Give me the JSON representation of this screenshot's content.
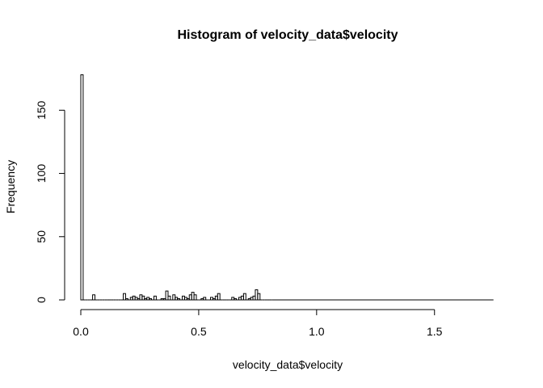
{
  "chart_data": {
    "type": "bar",
    "title": "Histogram of velocity_data$velocity",
    "xlabel": "velocity_data$velocity",
    "ylabel": "Frequency",
    "xlim": [
      0,
      1.75
    ],
    "ylim": [
      0,
      180
    ],
    "bin_width": 0.01,
    "x_ticks": [
      0,
      0.5,
      1.0,
      1.5
    ],
    "x_tick_labels": [
      "0.0",
      "0.5",
      "1.0",
      "1.5"
    ],
    "y_ticks": [
      0,
      50,
      100,
      150
    ],
    "y_tick_labels": [
      "0",
      "50",
      "100",
      "150"
    ],
    "bins_start": [
      0.0,
      0.01,
      0.02,
      0.03,
      0.04,
      0.05,
      0.06,
      0.07,
      0.08,
      0.09,
      0.1,
      0.11,
      0.12,
      0.13,
      0.14,
      0.15,
      0.16,
      0.17,
      0.18,
      0.19,
      0.2,
      0.21,
      0.22,
      0.23,
      0.24,
      0.25,
      0.26,
      0.27,
      0.28,
      0.29,
      0.3,
      0.31,
      0.32,
      0.33,
      0.34,
      0.35,
      0.36,
      0.37,
      0.38,
      0.39,
      0.4,
      0.41,
      0.42,
      0.43,
      0.44,
      0.45,
      0.46,
      0.47,
      0.48,
      0.49,
      0.5,
      0.51,
      0.52,
      0.53,
      0.54,
      0.55,
      0.56,
      0.57,
      0.58,
      0.59,
      0.6,
      0.61,
      0.62,
      0.63,
      0.64,
      0.65,
      0.66,
      0.67,
      0.68,
      0.69,
      0.7,
      0.71,
      0.72,
      0.73,
      0.74,
      0.75,
      0.76,
      0.77,
      0.78,
      0.79,
      0.8
    ],
    "values": [
      178,
      0,
      0,
      0,
      0,
      4,
      0,
      0,
      0,
      0,
      0,
      0,
      0,
      0,
      0,
      0,
      0,
      0,
      5,
      1,
      0,
      2,
      3,
      2,
      1,
      4,
      3,
      1,
      2,
      1,
      0,
      3,
      0,
      0,
      1,
      1,
      7,
      3,
      0,
      4,
      2,
      1,
      0,
      3,
      2,
      1,
      4,
      6,
      4,
      0,
      0,
      1,
      2,
      0,
      0,
      2,
      1,
      3,
      5,
      0,
      0,
      0,
      0,
      0,
      2,
      1,
      0,
      2,
      3,
      5,
      0,
      1,
      2,
      3,
      8,
      5,
      0,
      0,
      0,
      0,
      0
    ]
  }
}
